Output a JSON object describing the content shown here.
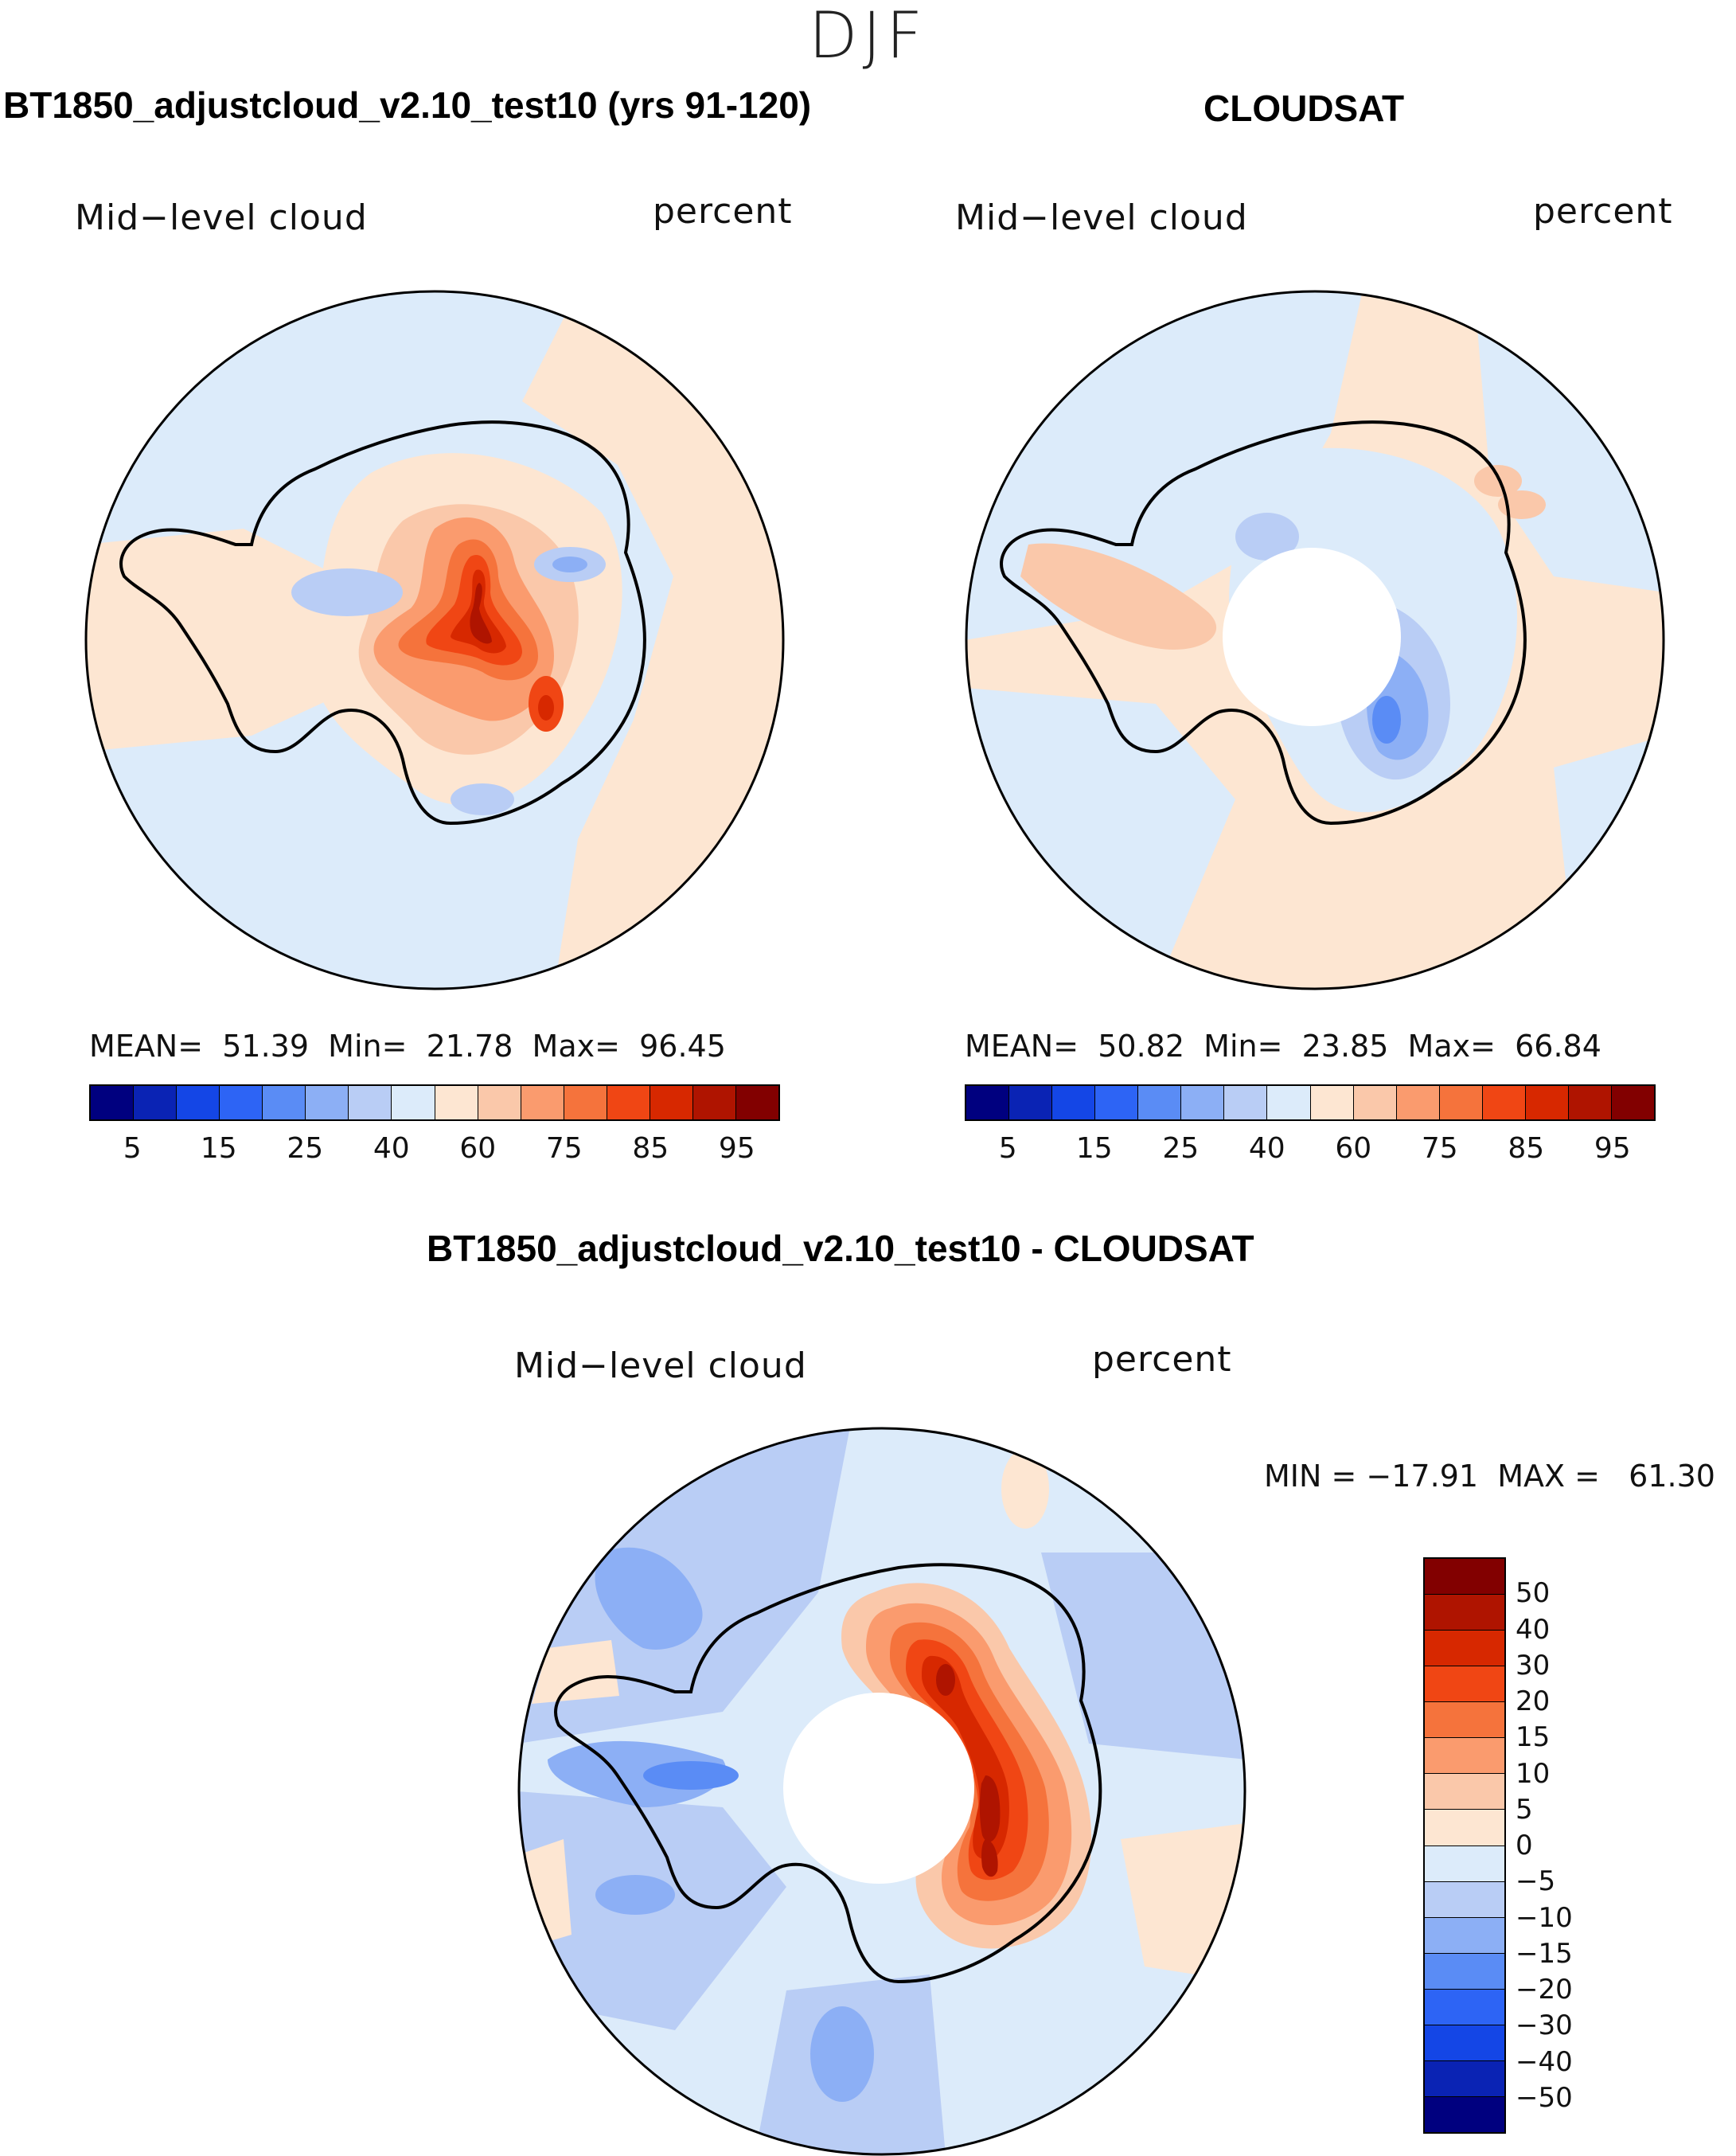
{
  "figure": {
    "season": "DJF",
    "variable_label": "Mid−level cloud",
    "units_label": "percent"
  },
  "panels": {
    "model": {
      "title": "BT1850_adjustcloud_v2.10_test10 (yrs 91-120)",
      "stats_text": "MEAN=  51.39  Min=  21.78  Max=  96.45"
    },
    "obs": {
      "title": "CLOUDSAT",
      "stats_text": "MEAN=  50.82  Min=  23.85  Max=  66.84"
    },
    "diff": {
      "title": "BT1850_adjustcloud_v2.10_test10 - CLOUDSAT",
      "stats_text": "MIN = −17.91  MAX =   61.30"
    }
  },
  "colorbars": {
    "abs": {
      "colors": [
        "#00007f",
        "#0a23b4",
        "#1446e6",
        "#2d64f5",
        "#5a8cf5",
        "#8caff5",
        "#b9cdf5",
        "#dcebfa",
        "#fde6d2",
        "#fac8aa",
        "#fa9b6e",
        "#f5733c",
        "#f04614",
        "#d72800",
        "#af1400",
        "#820000"
      ],
      "ticks": [
        "5",
        "15",
        "25",
        "40",
        "60",
        "75",
        "85",
        "95"
      ]
    },
    "diff": {
      "colors": [
        "#820000",
        "#af1400",
        "#d72800",
        "#f04614",
        "#f5733c",
        "#fa9b6e",
        "#fac8aa",
        "#fde6d2",
        "#dcebfa",
        "#b9cdf5",
        "#8caff5",
        "#5a8cf5",
        "#2d64f5",
        "#1446e6",
        "#0a23b4",
        "#00007f"
      ],
      "ticks": [
        "50",
        "40",
        "30",
        "20",
        "15",
        "10",
        "5",
        "0",
        "−5",
        "−10",
        "−15",
        "−20",
        "−30",
        "−40",
        "−50"
      ]
    }
  },
  "map_colors": {
    "ocean_light_blue": "#dcebfa",
    "light_orange": "#fde6d2",
    "blue_mid": "#b9cdf5",
    "blue_strong": "#8caff5",
    "blue_dark": "#5a8cf5",
    "orange_1": "#fac8aa",
    "orange_2": "#fa9b6e",
    "orange_3": "#f5733c",
    "orange_4": "#f04614",
    "red_1": "#d72800",
    "red_2": "#af1400",
    "red_3": "#820000",
    "missing": "#ffffff",
    "coast": "#000000"
  }
}
